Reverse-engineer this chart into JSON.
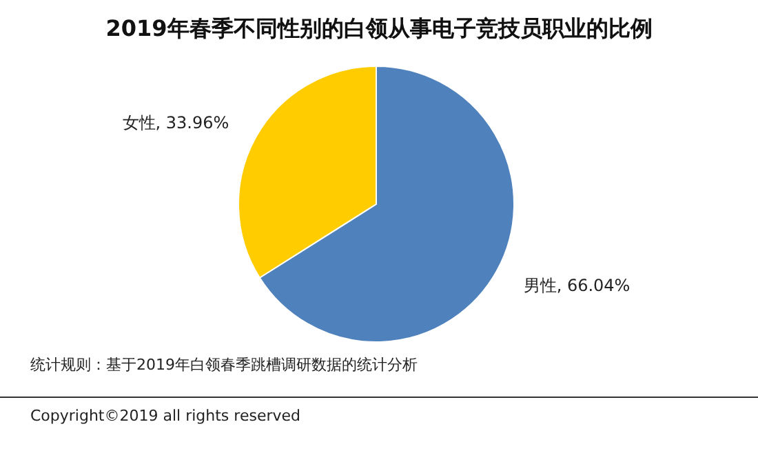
{
  "chart_data": {
    "type": "pie",
    "title": "2019年春季不同性别的白领从事电子竞技员职业的比例",
    "categories": [
      "男性",
      "女性"
    ],
    "values": [
      66.04,
      33.96
    ],
    "value_labels": [
      "66.04%",
      "33.96%"
    ],
    "colors": [
      "#4f81bd",
      "#ffcc00"
    ],
    "annotations": [
      "统计规则：基于2019年白领春季跳槽调研数据的统计分析",
      "Copyright©2019 all rights reserved"
    ]
  }
}
